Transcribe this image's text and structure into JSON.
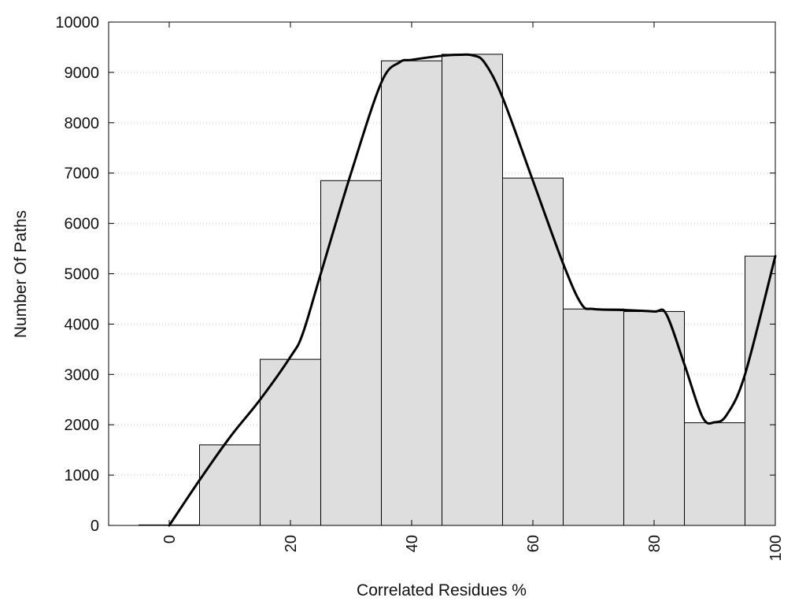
{
  "chart_data": {
    "type": "bar",
    "title": "",
    "xlabel": "Correlated Residues %",
    "ylabel": "Number Of Paths",
    "xlim": [
      -10,
      100
    ],
    "ylim": [
      0,
      10000
    ],
    "x_ticks": [
      0,
      20,
      40,
      60,
      80,
      100
    ],
    "y_ticks": [
      0,
      1000,
      2000,
      3000,
      4000,
      5000,
      6000,
      7000,
      8000,
      9000,
      10000
    ],
    "grid": "horizontal dotted",
    "legend": "none",
    "bins": [
      {
        "center": 0,
        "value": 10
      },
      {
        "center": 10,
        "value": 1600
      },
      {
        "center": 20,
        "value": 3300
      },
      {
        "center": 30,
        "value": 6850
      },
      {
        "center": 40,
        "value": 9230
      },
      {
        "center": 50,
        "value": 9360
      },
      {
        "center": 60,
        "value": 6900
      },
      {
        "center": 70,
        "value": 4300
      },
      {
        "center": 80,
        "value": 4250
      },
      {
        "center": 90,
        "value": 2040
      },
      {
        "center": 100,
        "value": 5350
      }
    ],
    "bin_width": 10,
    "smooth_curve": {
      "x": [
        0,
        5,
        10,
        15,
        20,
        22,
        25,
        30,
        35,
        38,
        40,
        45,
        48,
        50,
        52,
        55,
        60,
        65,
        68,
        70,
        75,
        80,
        82,
        85,
        88,
        90,
        92,
        95,
        100
      ],
      "y": [
        0,
        900,
        1750,
        2500,
        3350,
        3800,
        5000,
        7000,
        8800,
        9200,
        9250,
        9330,
        9350,
        9340,
        9200,
        8500,
        6850,
        5200,
        4400,
        4300,
        4280,
        4250,
        4200,
        3200,
        2150,
        2050,
        2200,
        3000,
        5350
      ]
    },
    "colors": {
      "bar_fill": "#dedede",
      "bar_stroke": "#000000",
      "curve": "#000000"
    }
  }
}
